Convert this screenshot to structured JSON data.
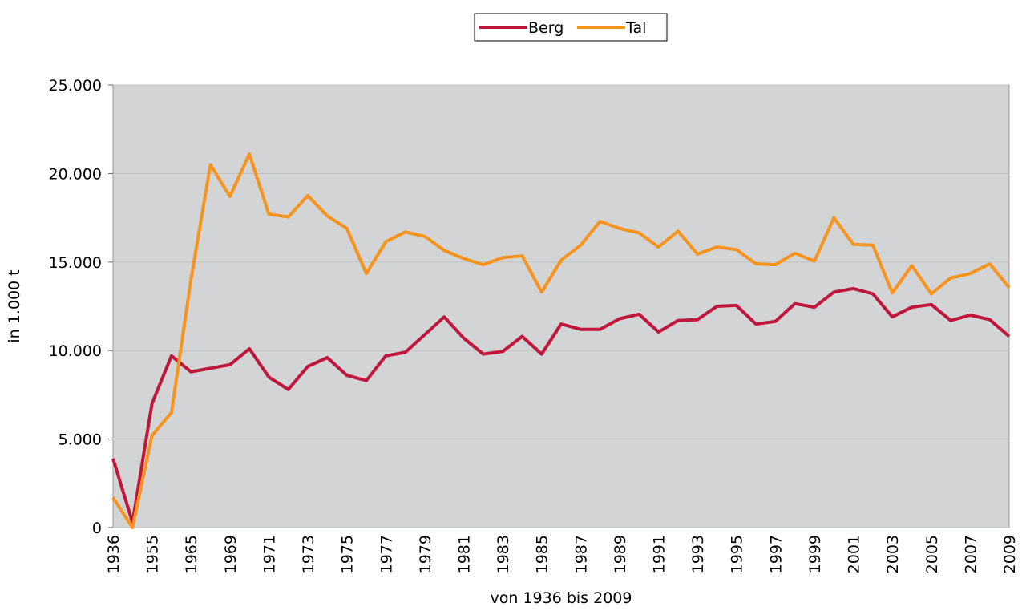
{
  "chart_data": {
    "type": "line",
    "x_label": "von 1936 bis 2009",
    "y_label": "in 1.000 t",
    "categories": [
      "1936",
      null,
      "1955",
      null,
      "1965",
      null,
      "1969",
      null,
      "1971",
      null,
      "1973",
      null,
      "1975",
      null,
      "1977",
      null,
      "1979",
      null,
      "1981",
      null,
      "1983",
      null,
      "1985",
      null,
      "1987",
      null,
      "1989",
      null,
      "1991",
      null,
      "1993",
      null,
      "1995",
      null,
      "1997",
      null,
      "1999",
      null,
      "2001",
      null,
      "2003",
      null,
      "2005",
      null,
      "2007",
      null,
      "2009"
    ],
    "series": [
      {
        "name": "Berg",
        "color": "#c0163a",
        "values": [
          3900,
          300,
          7000,
          9700,
          8800,
          9000,
          9200,
          10100,
          8500,
          7800,
          9100,
          9600,
          8600,
          8300,
          9700,
          9900,
          10900,
          11900,
          10700,
          9800,
          9950,
          10800,
          9800,
          11500,
          11200,
          11200,
          11800,
          12050,
          11050,
          11700,
          11750,
          12500,
          12550,
          11500,
          11650,
          12650,
          12450,
          13300,
          13500,
          13200,
          11900,
          12450,
          12600,
          11700,
          12000,
          11750,
          10800
        ]
      },
      {
        "name": "Tal",
        "color": "#f7941d",
        "values": [
          1700,
          0,
          5200,
          6500,
          14000,
          20500,
          18700,
          21100,
          17700,
          17550,
          18750,
          17600,
          16900,
          14350,
          16150,
          16700,
          16450,
          15650,
          15200,
          14850,
          15250,
          15350,
          13300,
          15100,
          15950,
          17300,
          16900,
          16650,
          15850,
          16750,
          15450,
          15850,
          15700,
          14900,
          14850,
          15500,
          15050,
          17500,
          16000,
          15950,
          13250,
          14800,
          13200,
          14100,
          14350,
          14900,
          13550
        ]
      }
    ],
    "ylim": [
      0,
      25000
    ],
    "yticks": [
      0,
      {
        "value": 5000,
        "label": "5.000"
      },
      {
        "value": 10000,
        "label": "10.000"
      },
      {
        "value": 15000,
        "label": "15.000"
      },
      {
        "value": 20000,
        "label": "20.000"
      },
      {
        "value": 25000,
        "label": "25.000"
      }
    ],
    "grid": true,
    "legend": "top"
  }
}
